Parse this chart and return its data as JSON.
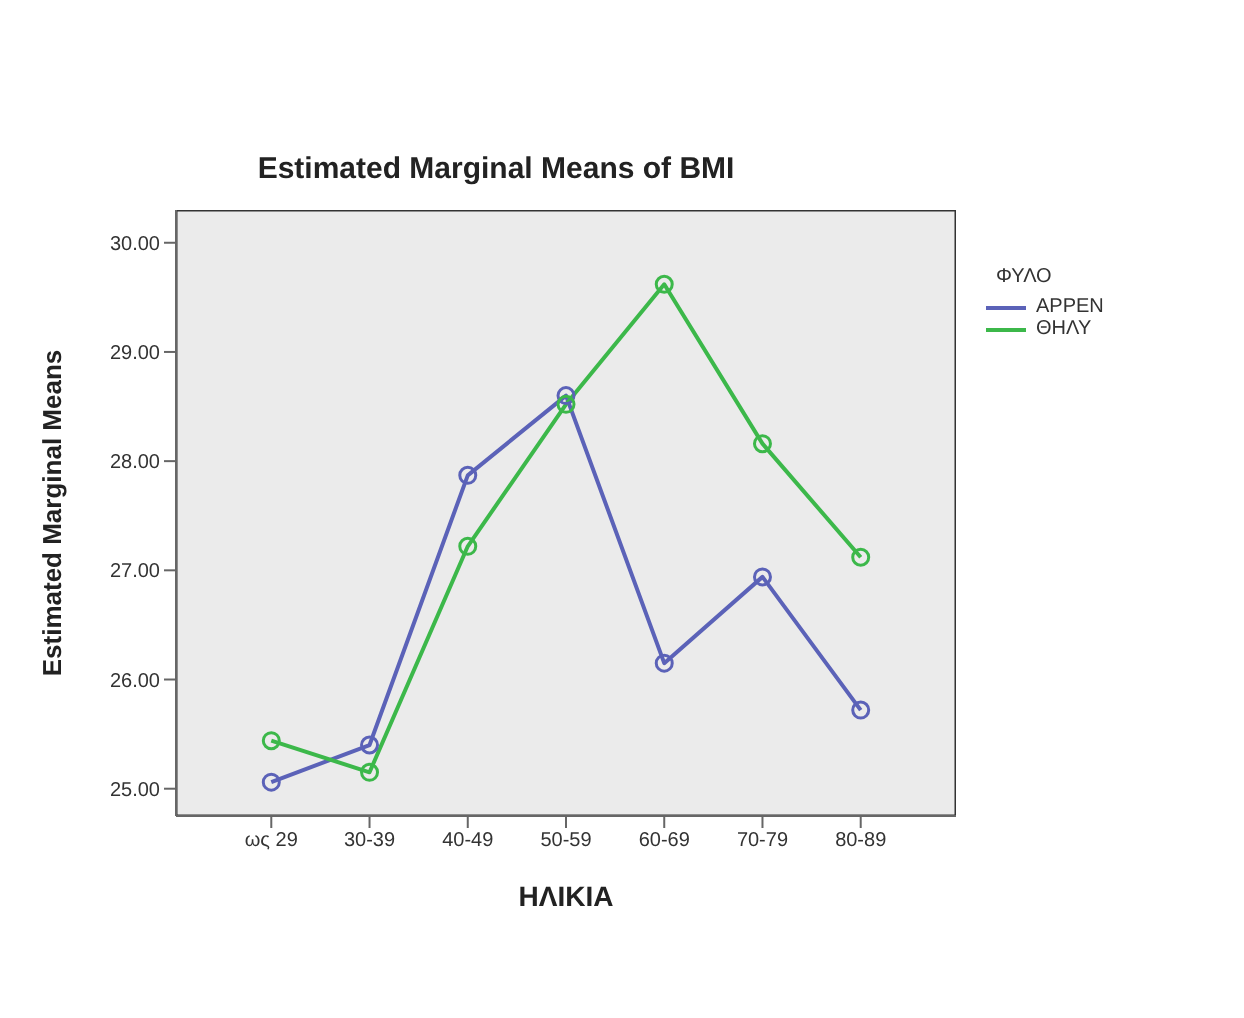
{
  "chart_data": {
    "type": "line",
    "title": "Estimated Marginal Means of BMI",
    "xlabel": "ΗΛΙΚΙΑ",
    "ylabel": "Estimated Marginal Means",
    "legend_title": "ΦΥΛΟ",
    "categories": [
      "ως 29",
      "30-39",
      "40-49",
      "50-59",
      "60-69",
      "70-79",
      "80-89"
    ],
    "series": [
      {
        "name": "ΑΡΡΕΝ",
        "color": "#5b62b8",
        "values": [
          25.06,
          25.4,
          27.87,
          28.6,
          26.15,
          26.94,
          25.72
        ]
      },
      {
        "name": "ΘΗΛΥ",
        "color": "#3cb84a",
        "values": [
          25.44,
          25.15,
          27.22,
          28.52,
          29.62,
          28.16,
          27.12
        ]
      }
    ],
    "ylim": [
      24.75,
      30.3
    ],
    "yticks": [
      {
        "value": 25,
        "label": "25.00"
      },
      {
        "value": 26,
        "label": "26.00"
      },
      {
        "value": 27,
        "label": "27.00"
      },
      {
        "value": 28,
        "label": "28.00"
      },
      {
        "value": 29,
        "label": "29.00"
      },
      {
        "value": 30,
        "label": "30.00"
      }
    ],
    "grid": false,
    "legend": "top right",
    "marker": "circle",
    "line_style": "solid"
  }
}
